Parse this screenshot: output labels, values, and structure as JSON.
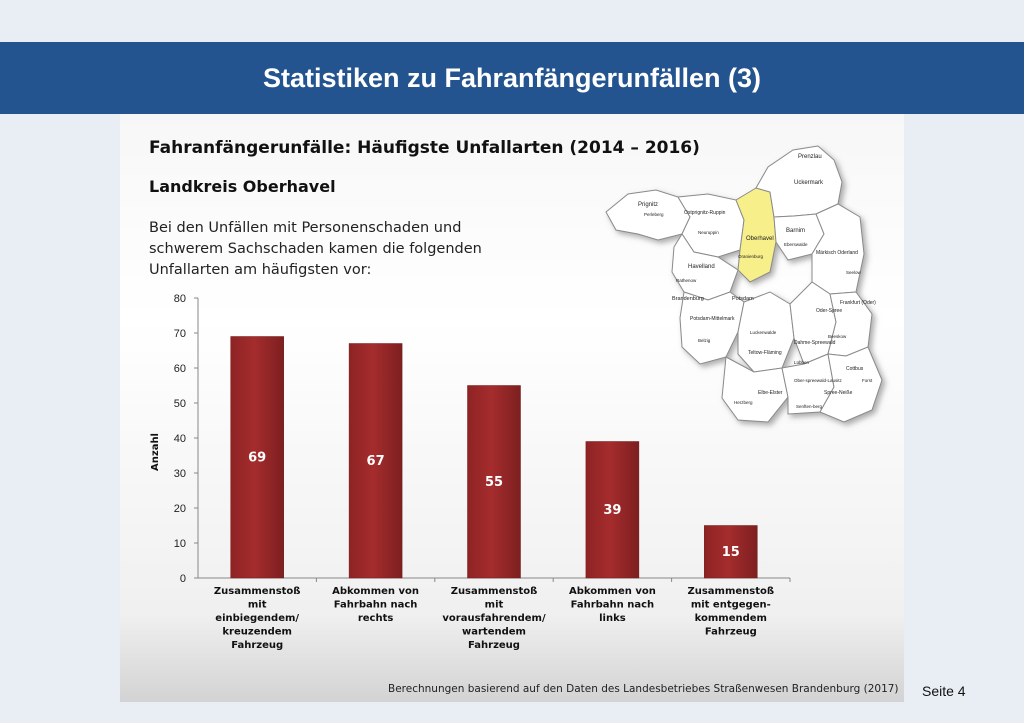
{
  "slide": {
    "title": "Statistiken zu Fahranfängerunfällen (3)",
    "heading": "Fahranfängerunfälle: Häufigste Unfallarten (2014 – 2016)",
    "subheading": "Landkreis Oberhavel",
    "description": "Bei den Unfällen mit Personenschaden und schwerem Sachschaden kamen die folgenden Unfallarten am häufigsten vor:",
    "source": "Berechnungen basierend auf den Daten des Landesbetriebes Straßenwesen Brandenburg (2017)",
    "page": "Seite 4"
  },
  "map": {
    "highlight_color": "#f7ef8a",
    "labels": [
      "Prenzlau",
      "Uckermark",
      "Prignitz",
      "Perleberg",
      "Ostprignitz-Ruppin",
      "Neuruppin",
      "Oberhavel",
      "Barnim",
      "Eberswalde",
      "Oranienburg",
      "Märkisch Oderland",
      "Havelland",
      "Rathenow",
      "Seelow",
      "Brandenburg",
      "Potsdam",
      "Frankfurt (Oder)",
      "Potsdam-Mittelmark",
      "Oder-Spree",
      "Belzig",
      "Luckenwalde",
      "Beeskow",
      "Teltow-Fläming",
      "Dahme-Spreewald",
      "Lübben",
      "Ober-spreewald-Lausitz",
      "Cottbus",
      "Forst",
      "Herzberg",
      "Elbe-Elster",
      "Spree-Neiße",
      "Senften-berg"
    ]
  },
  "chart_data": {
    "type": "bar",
    "categories": [
      "Zusammenstoß mit einbiegendem/ kreuzendem Fahrzeug",
      "Abkommen von Fahrbahn nach rechts",
      "Zusammenstoß mit vorausfahrendem/ wartendem Fahrzeug",
      "Abkommen von Fahrbahn nach links",
      "Zusammenstoß mit entgegen-kommendem Fahrzeug"
    ],
    "category_lines": [
      [
        "Zusammenstoß",
        "mit",
        "einbiegendem/",
        "kreuzendem",
        "Fahrzeug"
      ],
      [
        "Abkommen von",
        "Fahrbahn nach",
        "rechts"
      ],
      [
        "Zusammenstoß",
        "mit",
        "vorausfahrendem/",
        "wartendem",
        "Fahrzeug"
      ],
      [
        "Abkommen von",
        "Fahrbahn nach",
        "links"
      ],
      [
        "Zusammenstoß",
        "mit entgegen-",
        "kommendem",
        "Fahrzeug"
      ]
    ],
    "values": [
      69,
      67,
      55,
      39,
      15
    ],
    "ylabel": "Anzahl",
    "xlabel": "",
    "title": "",
    "ylim": [
      0,
      80
    ],
    "yticks": [
      0,
      10,
      20,
      30,
      40,
      50,
      60,
      70,
      80
    ],
    "bar_color": "#a52c2d",
    "grid": false,
    "legend": "none"
  }
}
